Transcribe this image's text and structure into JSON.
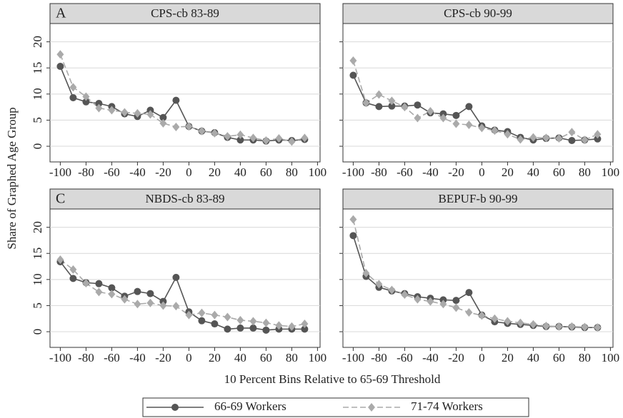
{
  "y_label": "Share of Graphed Age Group",
  "x_label": "10 Percent Bins Relative to 65-69 Threshold",
  "chart_data": [
    {
      "type": "line",
      "panel_label": "A",
      "title": "CPS-cb 83-89",
      "x": [
        -100,
        -90,
        -80,
        -70,
        -60,
        -50,
        -40,
        -30,
        -20,
        -10,
        0,
        10,
        20,
        30,
        40,
        50,
        60,
        70,
        80,
        90
      ],
      "xlim": [
        -108,
        102
      ],
      "xticks": [
        -100,
        -80,
        -60,
        -40,
        -20,
        0,
        20,
        40,
        60,
        80,
        100
      ],
      "ylim": [
        -3,
        23.5
      ],
      "yticks": [
        0,
        5,
        10,
        15,
        20
      ],
      "grid": true,
      "series": [
        {
          "name": "66-69 Workers",
          "color": "#555555",
          "values": [
            15.3,
            9.3,
            8.5,
            8.2,
            7.6,
            6.2,
            5.7,
            6.9,
            5.5,
            8.8,
            3.8,
            2.9,
            2.6,
            1.7,
            1.2,
            1.2,
            1.0,
            1.2,
            1.1,
            1.3
          ]
        },
        {
          "name": "71-74 Workers",
          "color": "#aaaaaa",
          "values": [
            17.6,
            11.3,
            9.5,
            7.3,
            6.9,
            6.5,
            6.3,
            6.1,
            4.4,
            3.7,
            3.8,
            2.9,
            2.5,
            1.9,
            2.2,
            1.6,
            1.1,
            1.5,
            0.9,
            1.6
          ]
        }
      ]
    },
    {
      "type": "line",
      "title": "CPS-cb 90-99",
      "x": [
        -100,
        -90,
        -80,
        -70,
        -60,
        -50,
        -40,
        -30,
        -20,
        -10,
        0,
        10,
        20,
        30,
        40,
        50,
        60,
        70,
        80,
        90
      ],
      "xlim": [
        -108,
        102
      ],
      "xticks": [
        -100,
        -80,
        -60,
        -40,
        -20,
        0,
        20,
        40,
        60,
        80,
        100
      ],
      "ylim": [
        -3,
        23.5
      ],
      "yticks": [
        0,
        5,
        10,
        15,
        20
      ],
      "grid": true,
      "series": [
        {
          "name": "66-69 Workers",
          "color": "#555555",
          "values": [
            13.6,
            8.3,
            7.6,
            7.7,
            7.7,
            7.9,
            6.4,
            6.2,
            5.9,
            7.6,
            3.9,
            3.1,
            2.8,
            1.7,
            1.2,
            1.5,
            1.6,
            1.1,
            1.2,
            1.4
          ]
        },
        {
          "name": "71-74 Workers",
          "color": "#aaaaaa",
          "values": [
            16.4,
            8.3,
            9.9,
            8.7,
            7.5,
            5.4,
            6.7,
            5.4,
            4.3,
            4.1,
            3.5,
            3.0,
            2.3,
            1.3,
            1.7,
            1.6,
            1.5,
            2.7,
            1.2,
            2.3
          ]
        }
      ]
    },
    {
      "type": "line",
      "panel_label": "C",
      "title": "NBDS-cb 83-89",
      "x": [
        -100,
        -90,
        -80,
        -70,
        -60,
        -50,
        -40,
        -30,
        -20,
        -10,
        0,
        10,
        20,
        30,
        40,
        50,
        60,
        70,
        80,
        90
      ],
      "xlim": [
        -108,
        102
      ],
      "xticks": [
        -100,
        -80,
        -60,
        -40,
        -20,
        0,
        20,
        40,
        60,
        80,
        100
      ],
      "ylim": [
        -3,
        23.5
      ],
      "yticks": [
        0,
        5,
        10,
        15,
        20
      ],
      "grid": true,
      "series": [
        {
          "name": "66-69 Workers",
          "color": "#555555",
          "values": [
            13.4,
            10.2,
            9.4,
            9.2,
            8.4,
            6.8,
            7.7,
            7.3,
            5.8,
            10.4,
            3.8,
            2.1,
            1.5,
            0.5,
            0.7,
            0.7,
            0.3,
            0.5,
            0.5,
            0.5
          ]
        },
        {
          "name": "71-74 Workers",
          "color": "#aaaaaa",
          "values": [
            13.8,
            11.9,
            9.3,
            7.6,
            7.2,
            6.2,
            5.3,
            5.5,
            5.0,
            4.9,
            3.2,
            3.6,
            3.2,
            2.8,
            2.2,
            2.0,
            1.7,
            1.2,
            1.0,
            1.5
          ]
        }
      ]
    },
    {
      "type": "line",
      "title": "BEPUF-b 90-99",
      "x": [
        -100,
        -90,
        -80,
        -70,
        -60,
        -50,
        -40,
        -30,
        -20,
        -10,
        0,
        10,
        20,
        30,
        40,
        50,
        60,
        70,
        80,
        90
      ],
      "xlim": [
        -108,
        102
      ],
      "xticks": [
        -100,
        -80,
        -60,
        -40,
        -20,
        0,
        20,
        40,
        60,
        80,
        100
      ],
      "ylim": [
        -3,
        23.5
      ],
      "yticks": [
        0,
        5,
        10,
        15,
        20
      ],
      "grid": true,
      "series": [
        {
          "name": "66-69 Workers",
          "color": "#555555",
          "values": [
            18.4,
            10.6,
            8.5,
            7.8,
            7.3,
            6.7,
            6.4,
            6.1,
            6.0,
            7.5,
            3.2,
            1.9,
            1.6,
            1.4,
            1.2,
            1.0,
            1.0,
            0.9,
            0.8,
            0.8
          ]
        },
        {
          "name": "71-74 Workers",
          "color": "#aaaaaa",
          "values": [
            21.5,
            11.2,
            9.1,
            8.0,
            7.1,
            6.2,
            5.8,
            5.3,
            4.6,
            3.7,
            3.1,
            2.5,
            2.0,
            1.7,
            1.4,
            1.1,
            1.0,
            1.0,
            0.9,
            0.8
          ]
        }
      ]
    }
  ]
}
